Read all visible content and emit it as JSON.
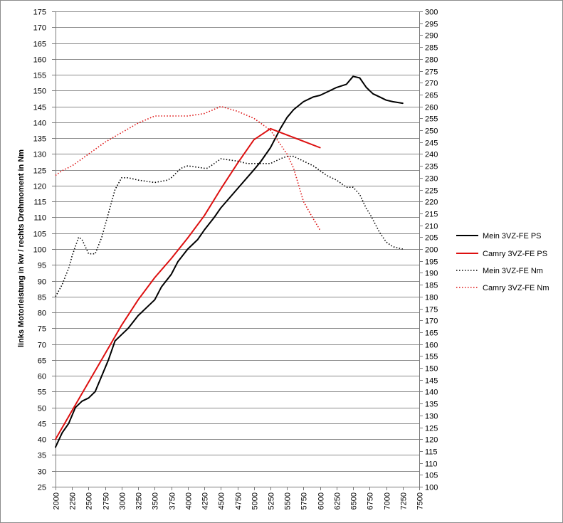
{
  "chart_data": {
    "type": "line",
    "title": "",
    "ylabel": "links Motorleistung in kw / rechts Drehmoment in Nm",
    "xlabel": "",
    "x_axis": {
      "min": 2000,
      "max": 7500,
      "step": 250,
      "ticks": [
        "2000",
        "2250",
        "2500",
        "2750",
        "3000",
        "3250",
        "3500",
        "3750",
        "4000",
        "4250",
        "4500",
        "4750",
        "5000",
        "5250",
        "5500",
        "5750",
        "6000",
        "6250",
        "6500",
        "6750",
        "7000",
        "7250",
        "7500"
      ]
    },
    "y_left": {
      "min": 25,
      "max": 175,
      "step": 5,
      "ticks": [
        "25",
        "30",
        "35",
        "40",
        "45",
        "50",
        "55",
        "60",
        "65",
        "70",
        "75",
        "80",
        "85",
        "90",
        "95",
        "100",
        "105",
        "110",
        "115",
        "120",
        "125",
        "130",
        "135",
        "140",
        "145",
        "150",
        "155",
        "160",
        "165",
        "170",
        "175"
      ]
    },
    "y_right": {
      "min": 100,
      "max": 300,
      "step": 5,
      "ticks": [
        "100",
        "105",
        "110",
        "115",
        "120",
        "125",
        "130",
        "135",
        "140",
        "145",
        "150",
        "155",
        "160",
        "165",
        "170",
        "175",
        "180",
        "185",
        "190",
        "195",
        "200",
        "205",
        "210",
        "215",
        "220",
        "225",
        "230",
        "235",
        "240",
        "245",
        "250",
        "255",
        "260",
        "265",
        "270",
        "275",
        "280",
        "285",
        "290",
        "295",
        "300"
      ]
    },
    "grid": "horizontal",
    "legend_position": "right",
    "series": [
      {
        "name": "Mein 3VZ-FE PS",
        "axis": "left",
        "color": "#000000",
        "style": "solid",
        "points": [
          [
            2000,
            37.5
          ],
          [
            2100,
            42
          ],
          [
            2200,
            45
          ],
          [
            2300,
            50
          ],
          [
            2400,
            52
          ],
          [
            2500,
            53
          ],
          [
            2600,
            55
          ],
          [
            2700,
            60
          ],
          [
            2800,
            65
          ],
          [
            2900,
            71
          ],
          [
            3000,
            73
          ],
          [
            3100,
            75
          ],
          [
            3250,
            79
          ],
          [
            3400,
            82
          ],
          [
            3500,
            84
          ],
          [
            3600,
            88
          ],
          [
            3750,
            92
          ],
          [
            3850,
            96
          ],
          [
            4000,
            100
          ],
          [
            4150,
            103
          ],
          [
            4250,
            106
          ],
          [
            4400,
            110
          ],
          [
            4500,
            113
          ],
          [
            4750,
            119
          ],
          [
            5000,
            125
          ],
          [
            5100,
            127.5
          ],
          [
            5250,
            132
          ],
          [
            5400,
            138
          ],
          [
            5500,
            141.5
          ],
          [
            5600,
            144
          ],
          [
            5750,
            146.5
          ],
          [
            5900,
            148
          ],
          [
            6000,
            148.5
          ],
          [
            6100,
            149.5
          ],
          [
            6250,
            151
          ],
          [
            6400,
            152
          ],
          [
            6500,
            154.5
          ],
          [
            6600,
            154
          ],
          [
            6700,
            151
          ],
          [
            6800,
            149
          ],
          [
            6900,
            148
          ],
          [
            7000,
            147
          ],
          [
            7100,
            146.5
          ],
          [
            7250,
            146
          ]
        ]
      },
      {
        "name": "Camry 3VZ-FE PS",
        "axis": "left",
        "color": "#dd1010",
        "style": "solid",
        "points": [
          [
            2000,
            40
          ],
          [
            2250,
            49
          ],
          [
            2500,
            58
          ],
          [
            2750,
            67
          ],
          [
            3000,
            76
          ],
          [
            3250,
            84
          ],
          [
            3500,
            91
          ],
          [
            3750,
            97
          ],
          [
            4000,
            103.5
          ],
          [
            4250,
            110.5
          ],
          [
            4500,
            119
          ],
          [
            4750,
            127
          ],
          [
            5000,
            134.5
          ],
          [
            5250,
            138
          ],
          [
            5500,
            136
          ],
          [
            5750,
            134
          ],
          [
            6000,
            132
          ]
        ]
      },
      {
        "name": "Mein 3VZ-FE Nm",
        "axis": "right",
        "color": "#000000",
        "style": "dotted",
        "points": [
          [
            2000,
            180
          ],
          [
            2100,
            185
          ],
          [
            2200,
            192
          ],
          [
            2250,
            197
          ],
          [
            2350,
            205
          ],
          [
            2400,
            204
          ],
          [
            2500,
            198
          ],
          [
            2600,
            198
          ],
          [
            2700,
            205
          ],
          [
            2800,
            215
          ],
          [
            2900,
            225
          ],
          [
            3000,
            230
          ],
          [
            3100,
            230
          ],
          [
            3250,
            229
          ],
          [
            3500,
            228
          ],
          [
            3700,
            229
          ],
          [
            3750,
            230
          ],
          [
            3900,
            234
          ],
          [
            4000,
            235
          ],
          [
            4250,
            234
          ],
          [
            4300,
            234
          ],
          [
            4400,
            236
          ],
          [
            4500,
            238
          ],
          [
            4750,
            237
          ],
          [
            4900,
            236
          ],
          [
            5000,
            236
          ],
          [
            5250,
            236
          ],
          [
            5400,
            238
          ],
          [
            5500,
            239
          ],
          [
            5600,
            239
          ],
          [
            5750,
            237
          ],
          [
            5900,
            235
          ],
          [
            6000,
            233
          ],
          [
            6100,
            231
          ],
          [
            6250,
            229
          ],
          [
            6400,
            226
          ],
          [
            6500,
            226
          ],
          [
            6600,
            223
          ],
          [
            6700,
            217
          ],
          [
            6750,
            215
          ],
          [
            6900,
            207
          ],
          [
            7000,
            203
          ],
          [
            7100,
            201
          ],
          [
            7250,
            200
          ]
        ]
      },
      {
        "name": "Camry 3VZ-FE Nm",
        "axis": "right",
        "color": "#dd1010",
        "style": "dotted",
        "points": [
          [
            2000,
            231
          ],
          [
            2100,
            233
          ],
          [
            2250,
            235
          ],
          [
            2500,
            240
          ],
          [
            2750,
            245
          ],
          [
            3000,
            249
          ],
          [
            3250,
            253
          ],
          [
            3500,
            256
          ],
          [
            3750,
            256
          ],
          [
            4000,
            256
          ],
          [
            4250,
            257
          ],
          [
            4500,
            260
          ],
          [
            4750,
            258
          ],
          [
            5000,
            255
          ],
          [
            5250,
            250
          ],
          [
            5500,
            240
          ],
          [
            5600,
            234
          ],
          [
            5750,
            220
          ],
          [
            5850,
            215
          ],
          [
            6000,
            208
          ]
        ]
      }
    ]
  }
}
